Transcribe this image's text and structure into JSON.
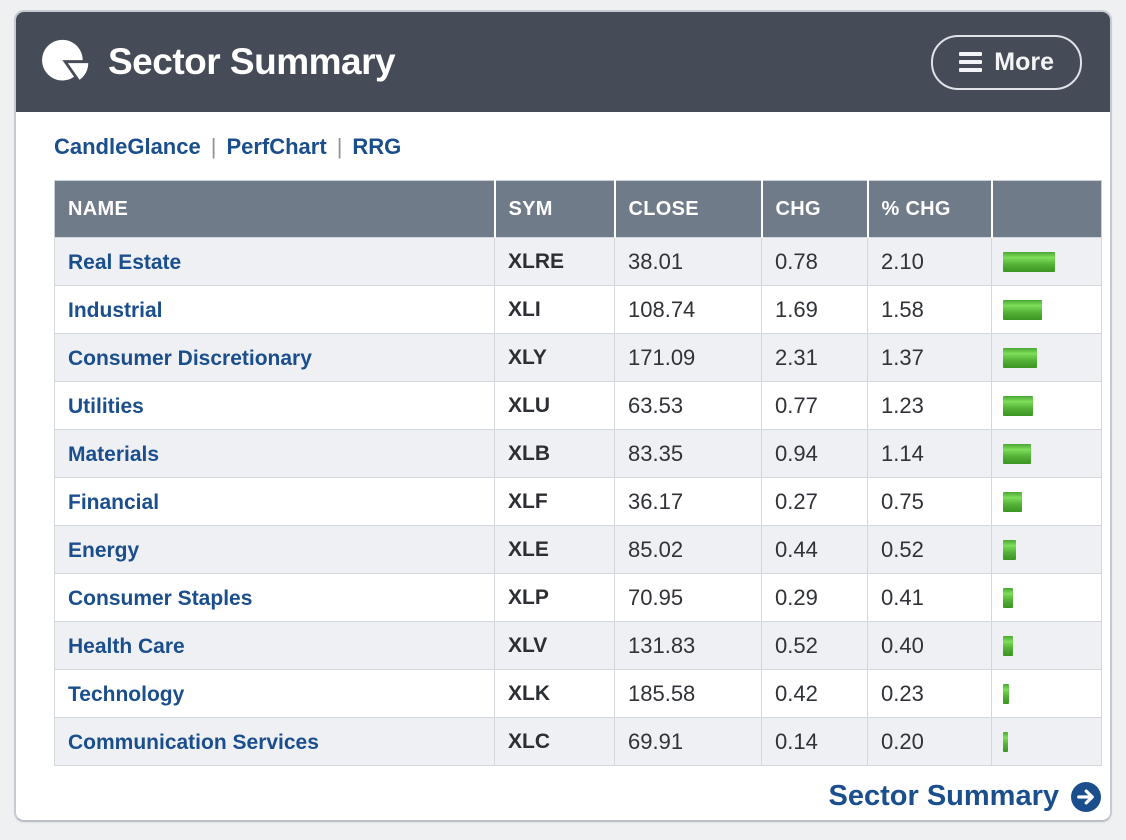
{
  "header": {
    "title": "Sector Summary",
    "more_label": "More"
  },
  "nav": {
    "links": [
      "CandleGlance",
      "PerfChart",
      "RRG"
    ],
    "separator": "|"
  },
  "table": {
    "columns": [
      "NAME",
      "SYM",
      "CLOSE",
      "CHG",
      "% CHG",
      ""
    ],
    "rows": [
      {
        "name": "Real Estate",
        "sym": "XLRE",
        "close": "38.01",
        "chg": "0.78",
        "pct": "2.10"
      },
      {
        "name": "Industrial",
        "sym": "XLI",
        "close": "108.74",
        "chg": "1.69",
        "pct": "1.58"
      },
      {
        "name": "Consumer Discretionary",
        "sym": "XLY",
        "close": "171.09",
        "chg": "2.31",
        "pct": "1.37"
      },
      {
        "name": "Utilities",
        "sym": "XLU",
        "close": "63.53",
        "chg": "0.77",
        "pct": "1.23"
      },
      {
        "name": "Materials",
        "sym": "XLB",
        "close": "83.35",
        "chg": "0.94",
        "pct": "1.14"
      },
      {
        "name": "Financial",
        "sym": "XLF",
        "close": "36.17",
        "chg": "0.27",
        "pct": "0.75"
      },
      {
        "name": "Energy",
        "sym": "XLE",
        "close": "85.02",
        "chg": "0.44",
        "pct": "0.52"
      },
      {
        "name": "Consumer Staples",
        "sym": "XLP",
        "close": "70.95",
        "chg": "0.29",
        "pct": "0.41"
      },
      {
        "name": "Health Care",
        "sym": "XLV",
        "close": "131.83",
        "chg": "0.52",
        "pct": "0.40"
      },
      {
        "name": "Technology",
        "sym": "XLK",
        "close": "185.58",
        "chg": "0.42",
        "pct": "0.23"
      },
      {
        "name": "Communication Services",
        "sym": "XLC",
        "close": "69.91",
        "chg": "0.14",
        "pct": "0.20"
      }
    ]
  },
  "footer": {
    "link_label": "Sector Summary"
  },
  "colors": {
    "header_bg": "#454c57",
    "table_header_bg": "#6f7b89",
    "link_blue": "#1b4e8c",
    "bar_green_light": "#7ddf5a",
    "bar_green_dark": "#3b9421",
    "row_alt_bg": "#eef0f4",
    "panel_border": "#c5cbd3"
  }
}
